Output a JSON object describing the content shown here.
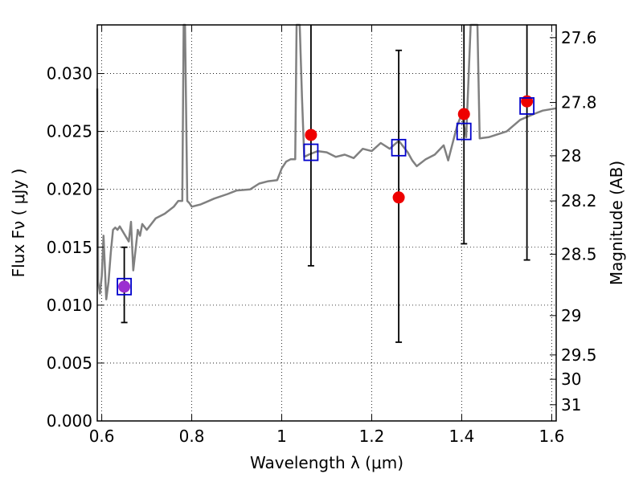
{
  "chart_data": {
    "type": "scatter",
    "xlabel": "Wavelength  λ (μm)",
    "ylabel": "Flux  Fν  ( μJy )",
    "ylabel_right": "Magnitude (AB)",
    "xlim": [
      0.59,
      1.61
    ],
    "ylim": [
      0.0,
      0.0342
    ],
    "grid": true,
    "grid_style": "dotted",
    "x_ticks": [
      0.6,
      0.8,
      1.0,
      1.2,
      1.4,
      1.6
    ],
    "x_tick_labels": [
      "0.6",
      "0.8",
      "1",
      "1.2",
      "1.4",
      "1.6"
    ],
    "y_ticks": [
      0.0,
      0.005,
      0.01,
      0.015,
      0.02,
      0.025,
      0.03
    ],
    "y_tick_labels": [
      "0.000",
      "0.005",
      "0.010",
      "0.015",
      "0.020",
      "0.025",
      "0.030"
    ],
    "mag_ticks": [
      {
        "label": "27.6",
        "flux": 0.0331
      },
      {
        "label": "27.8",
        "flux": 0.0275
      },
      {
        "label": "28",
        "flux": 0.0229
      },
      {
        "label": "28.2",
        "flux": 0.019
      },
      {
        "label": "28.5",
        "flux": 0.0144
      },
      {
        "label": "29",
        "flux": 0.0091
      },
      {
        "label": "29.5",
        "flux": 0.0057
      },
      {
        "label": "30",
        "flux": 0.0036
      },
      {
        "label": "31",
        "flux": 0.0014
      }
    ],
    "colors": {
      "spectrum": "#808080",
      "observed": "#ee0000",
      "observed_first": "#9b30d0",
      "model": "#0000cc",
      "errorbar": "#000000"
    },
    "spectrum": {
      "x": [
        0.59,
        0.592,
        0.596,
        0.6,
        0.604,
        0.61,
        0.615,
        0.62,
        0.625,
        0.63,
        0.635,
        0.64,
        0.66,
        0.665,
        0.67,
        0.68,
        0.685,
        0.69,
        0.7,
        0.72,
        0.74,
        0.76,
        0.77,
        0.779,
        0.782,
        0.785,
        0.79,
        0.795,
        0.8,
        0.82,
        0.85,
        0.88,
        0.9,
        0.93,
        0.95,
        0.97,
        0.99,
        1.0,
        1.01,
        1.02,
        1.03,
        1.033,
        1.035,
        1.04,
        1.045,
        1.05,
        1.06,
        1.08,
        1.1,
        1.12,
        1.14,
        1.16,
        1.18,
        1.2,
        1.22,
        1.24,
        1.26,
        1.28,
        1.29,
        1.3,
        1.32,
        1.34,
        1.36,
        1.37,
        1.38,
        1.39,
        1.4,
        1.41,
        1.42,
        1.425,
        1.43,
        1.435,
        1.44,
        1.46,
        1.5,
        1.53,
        1.56,
        1.58,
        1.61
      ],
      "y": [
        0.0287,
        0.012,
        0.011,
        0.0125,
        0.016,
        0.0105,
        0.012,
        0.0145,
        0.0165,
        0.0167,
        0.0165,
        0.0168,
        0.0155,
        0.0172,
        0.013,
        0.0165,
        0.016,
        0.017,
        0.0165,
        0.0175,
        0.0179,
        0.0185,
        0.019,
        0.019,
        0.0342,
        0.0342,
        0.019,
        0.0188,
        0.0185,
        0.0187,
        0.0192,
        0.0196,
        0.0199,
        0.02,
        0.0205,
        0.0207,
        0.0208,
        0.0218,
        0.0224,
        0.0226,
        0.0226,
        0.0342,
        0.0342,
        0.0342,
        0.028,
        0.0228,
        0.023,
        0.0233,
        0.0232,
        0.0228,
        0.023,
        0.0227,
        0.0235,
        0.0233,
        0.024,
        0.0235,
        0.0242,
        0.0232,
        0.0225,
        0.022,
        0.0226,
        0.023,
        0.0238,
        0.0225,
        0.024,
        0.0255,
        0.0265,
        0.0245,
        0.0342,
        0.0342,
        0.0342,
        0.0342,
        0.0244,
        0.0245,
        0.025,
        0.026,
        0.0265,
        0.0268,
        0.027
      ]
    },
    "observed": {
      "x": [
        0.65,
        1.065,
        1.26,
        1.405,
        1.545
      ],
      "y": [
        0.0116,
        0.0247,
        0.0193,
        0.0265,
        0.0276
      ],
      "yerr_low": [
        0.0085,
        0.0134,
        0.0068,
        0.0153,
        0.0139
      ],
      "yerr_high": [
        0.015,
        0.0342,
        0.032,
        0.0342,
        0.0342
      ]
    },
    "model": {
      "x": [
        0.65,
        1.065,
        1.26,
        1.405,
        1.545
      ],
      "y": [
        0.0116,
        0.0232,
        0.0236,
        0.025,
        0.0272
      ]
    }
  }
}
